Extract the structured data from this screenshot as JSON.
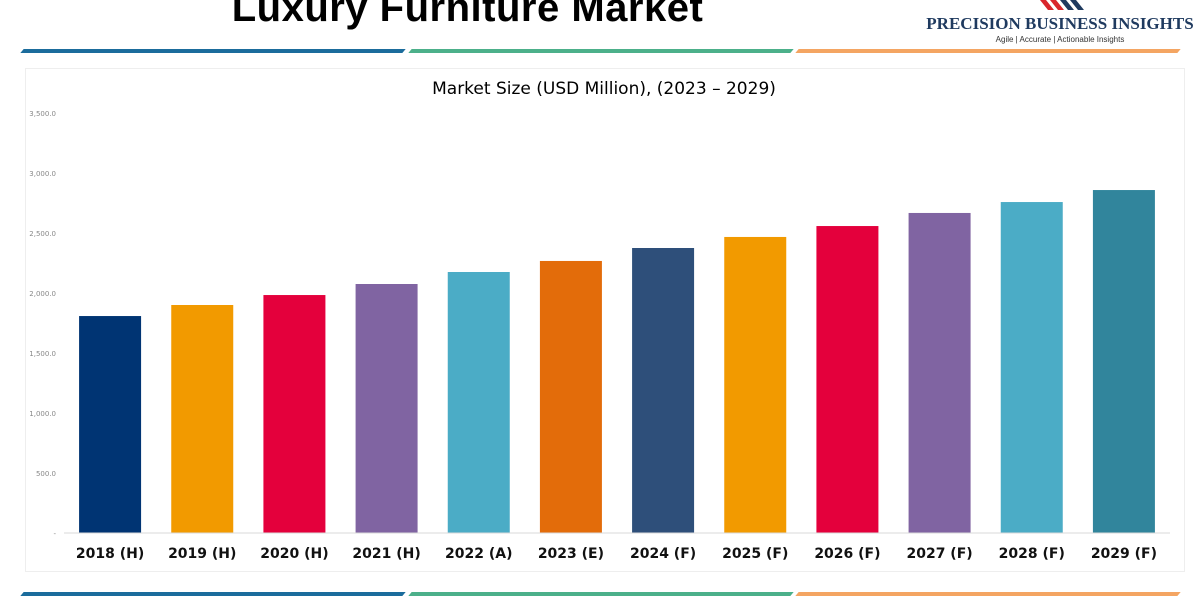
{
  "header": {
    "title": "Luxury Furniture Market"
  },
  "logo": {
    "name": "PRECISION BUSINESS INSIGHTS",
    "tagline": "Agile | Accurate | Actionable Insights"
  },
  "colors": {
    "rule_blue": "#1b6c9c",
    "rule_green": "#4cb08a",
    "rule_orange": "#f4a562"
  },
  "chart_data": {
    "type": "bar",
    "title": "Market Size (USD Million), (2023 – 2029)",
    "xlabel": "",
    "ylabel": "",
    "ylim": [
      0,
      3500
    ],
    "yticks": [
      0,
      500,
      1000,
      1500,
      2000,
      2500,
      3000,
      3500
    ],
    "ytick_labels": [
      "-",
      "500.0",
      "1,000.0",
      "1,500.0",
      "2,000.0",
      "2,500.0",
      "3,000.0",
      "3,500.0"
    ],
    "grid": false,
    "categories": [
      "2018 (H)",
      "2019 (H)",
      "2020 (H)",
      "2021 (H)",
      "2022 (A)",
      "2023 (E)",
      "2024 (F)",
      "2025 (F)",
      "2026 (F)",
      "2027 (F)",
      "2028 (F)",
      "2029 (F)"
    ],
    "values": [
      1808,
      1900,
      1983,
      2075,
      2175,
      2267,
      2375,
      2467,
      2558,
      2667,
      2758,
      2858
    ],
    "bar_colors": [
      "#003473",
      "#F29A00",
      "#E4003C",
      "#8064A2",
      "#4BACC6",
      "#E36C0A",
      "#2E4F7A",
      "#F29A00",
      "#E4003C",
      "#8064A2",
      "#4BACC6",
      "#31859C"
    ]
  }
}
